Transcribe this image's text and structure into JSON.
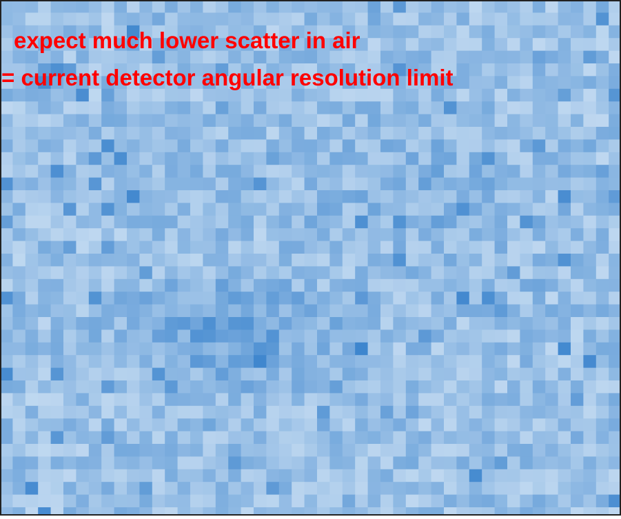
{
  "annotation": {
    "lines": [
      "expect much lower scatter in air",
      "= current detector angular resolution limit"
    ]
  }
}
